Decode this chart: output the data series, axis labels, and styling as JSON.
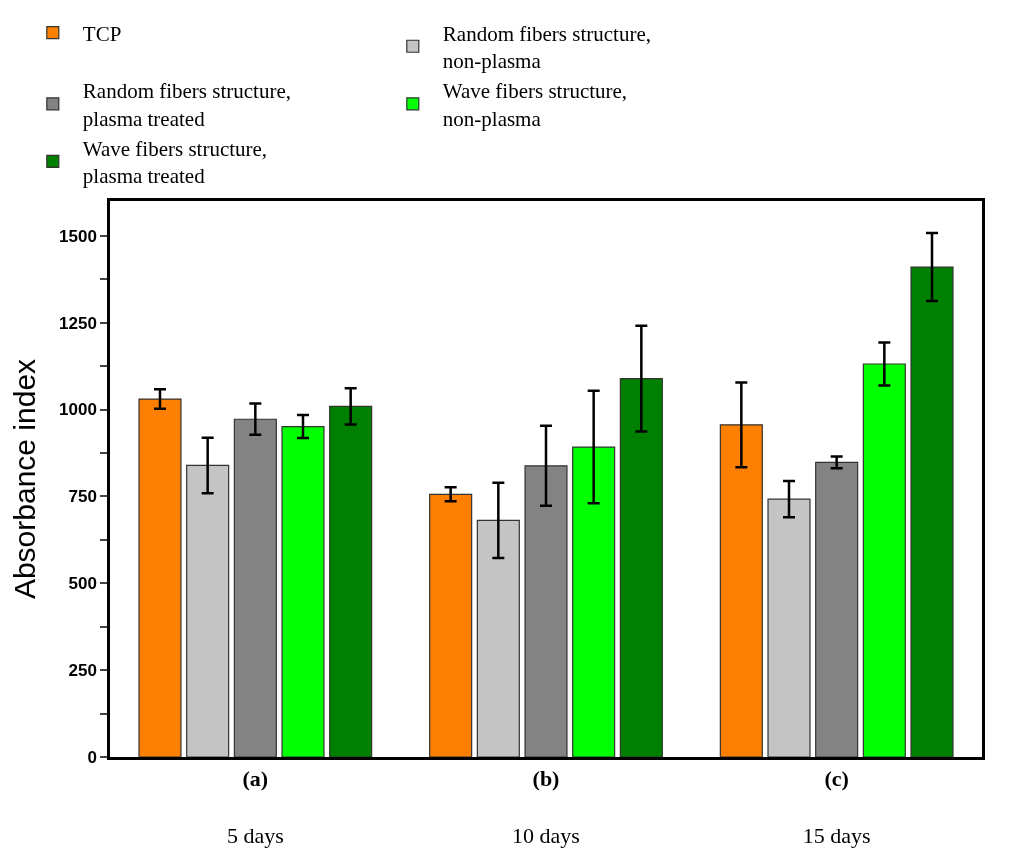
{
  "chart_data": {
    "type": "bar",
    "ylabel": "Absorbance index",
    "categories": [
      "(a)\n5 days",
      "(b)\n10 days",
      "(c)\n15 days"
    ],
    "series": [
      {
        "name": "TCP",
        "color": "#ff8000",
        "values": [
          1030,
          756,
          956
        ],
        "errors": [
          28,
          20,
          122
        ]
      },
      {
        "name": "Random fibers structure,\nnon-plasma",
        "color": "#c4c4c4",
        "values": [
          839,
          681,
          742
        ],
        "errors": [
          80,
          108,
          52
        ]
      },
      {
        "name": "Random fibers structure,\nplasma treated",
        "color": "#838383",
        "values": [
          972,
          838,
          848
        ],
        "errors": [
          45,
          115,
          17
        ]
      },
      {
        "name": "Wave fibers structure,\nnon-plasma",
        "color": "#00ff00",
        "values": [
          951,
          892,
          1131
        ],
        "errors": [
          33,
          162,
          62
        ]
      },
      {
        "name": "Wave fibers structure,\nplasma treated",
        "color": "#008000",
        "values": [
          1009,
          1089,
          1410
        ],
        "errors": [
          52,
          152,
          98
        ]
      }
    ],
    "ylim": [
      0,
      1600
    ],
    "yticks": [
      0,
      {
        "value": 125,
        "label": null
      },
      250,
      {
        "value": 375,
        "label": null
      },
      500,
      {
        "value": 625,
        "label": null
      },
      750,
      {
        "value": 875,
        "label": null
      },
      1000,
      {
        "value": 1125,
        "label": null
      },
      1250,
      {
        "value": 1375,
        "label": null
      },
      1500
    ],
    "legend": "top"
  }
}
